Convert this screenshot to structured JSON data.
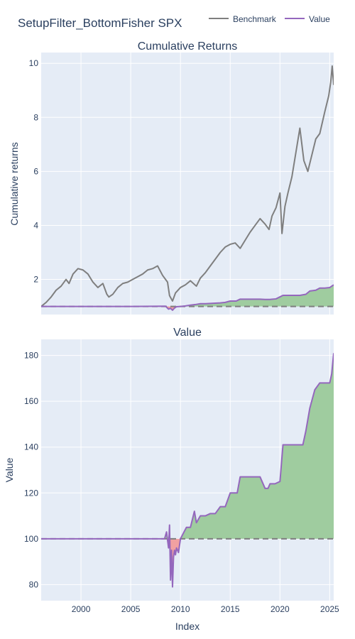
{
  "page": {
    "title": "SetupFilter_BottomFisher SPX",
    "xlabel": "Index"
  },
  "colors": {
    "plot_bg": "#e5ecf6",
    "grid": "#ffffff",
    "benchmark": "#7f7f7f",
    "value": "#9467bd",
    "gain_fill": "#9fcc9f",
    "loss_fill": "#f1a1a1",
    "baseline": "#7f7f7f"
  },
  "legend": {
    "items": [
      {
        "label": "Benchmark",
        "color": "#7f7f7f"
      },
      {
        "label": "Value",
        "color": "#9467bd"
      }
    ]
  },
  "chart_data": [
    {
      "type": "line",
      "title": "Cumulative Returns",
      "ylabel": "Cumulative returns",
      "xlabel": "",
      "xlim": [
        1996.0,
        2025.4
      ],
      "ylim": [
        0.7,
        10.4
      ],
      "x_ticks": [
        2000,
        2005,
        2010,
        2015,
        2020,
        2025
      ],
      "y_ticks": [
        2,
        4,
        6,
        8,
        10
      ],
      "baseline": 1,
      "grid": true,
      "series": [
        {
          "name": "Benchmark",
          "x": [
            1996.0,
            1996.5,
            1997.0,
            1997.5,
            1998.0,
            1998.5,
            1998.8,
            1999.2,
            1999.7,
            2000.2,
            2000.7,
            2001.2,
            2001.7,
            2002.2,
            2002.6,
            2002.8,
            2003.2,
            2003.7,
            2004.2,
            2004.7,
            2005.2,
            2005.7,
            2006.2,
            2006.7,
            2007.2,
            2007.7,
            2008.2,
            2008.7,
            2008.9,
            2009.2,
            2009.5,
            2010.0,
            2010.5,
            2011.0,
            2011.6,
            2012.0,
            2012.5,
            2013.0,
            2013.5,
            2014.0,
            2014.5,
            2015.0,
            2015.5,
            2016.0,
            2016.5,
            2017.0,
            2017.5,
            2018.0,
            2018.5,
            2018.9,
            2019.2,
            2019.6,
            2020.0,
            2020.2,
            2020.5,
            2020.8,
            2021.2,
            2021.6,
            2022.0,
            2022.4,
            2022.8,
            2023.2,
            2023.6,
            2024.0,
            2024.5,
            2024.9,
            2025.1,
            2025.25,
            2025.4
          ],
          "y": [
            1.0,
            1.15,
            1.35,
            1.6,
            1.75,
            2.0,
            1.85,
            2.2,
            2.4,
            2.35,
            2.2,
            1.9,
            1.7,
            1.85,
            1.45,
            1.35,
            1.45,
            1.7,
            1.85,
            1.9,
            2.0,
            2.1,
            2.2,
            2.35,
            2.4,
            2.5,
            2.15,
            1.9,
            1.4,
            1.2,
            1.5,
            1.7,
            1.8,
            1.95,
            1.75,
            2.05,
            2.25,
            2.5,
            2.75,
            3.0,
            3.2,
            3.3,
            3.35,
            3.15,
            3.45,
            3.75,
            4.0,
            4.25,
            4.05,
            3.85,
            4.35,
            4.65,
            5.2,
            3.7,
            4.7,
            5.2,
            5.8,
            6.7,
            7.6,
            6.4,
            6.0,
            6.6,
            7.2,
            7.4,
            8.2,
            8.8,
            9.3,
            9.9,
            9.2
          ]
        },
        {
          "name": "Value",
          "x": [
            1996.0,
            2000.0,
            2005.0,
            2008.5,
            2008.8,
            2009.0,
            2009.2,
            2009.4,
            2009.6,
            2010.0,
            2010.5,
            2011.0,
            2011.5,
            2012.0,
            2012.5,
            2013.0,
            2013.5,
            2014.0,
            2014.5,
            2015.0,
            2015.6,
            2016.0,
            2017.0,
            2018.0,
            2018.5,
            2019.0,
            2019.6,
            2020.3,
            2021.0,
            2022.0,
            2022.6,
            2023.0,
            2023.6,
            2024.0,
            2024.5,
            2025.0,
            2025.4
          ],
          "y": [
            1.0,
            1.0,
            1.0,
            1.01,
            0.9,
            0.93,
            0.86,
            0.94,
            0.99,
            1.0,
            1.02,
            1.05,
            1.07,
            1.1,
            1.1,
            1.11,
            1.12,
            1.13,
            1.15,
            1.2,
            1.2,
            1.27,
            1.27,
            1.27,
            1.26,
            1.26,
            1.28,
            1.41,
            1.41,
            1.41,
            1.45,
            1.57,
            1.6,
            1.68,
            1.68,
            1.7,
            1.8
          ]
        }
      ]
    },
    {
      "type": "area",
      "title": "Value",
      "ylabel": "Value",
      "xlabel": "Index",
      "xlim": [
        1996.0,
        2025.4
      ],
      "ylim": [
        73,
        187
      ],
      "x_ticks": [
        2000,
        2005,
        2010,
        2015,
        2020,
        2025
      ],
      "y_ticks": [
        80,
        100,
        120,
        140,
        160,
        180
      ],
      "baseline": 100,
      "grid": true,
      "series": [
        {
          "name": "Value",
          "x": [
            1996.0,
            2000.0,
            2005.0,
            2008.4,
            2008.6,
            2008.8,
            2008.9,
            2009.0,
            2009.1,
            2009.2,
            2009.3,
            2009.4,
            2009.5,
            2009.6,
            2009.8,
            2010.0,
            2010.6,
            2011.0,
            2011.4,
            2011.6,
            2012.0,
            2012.5,
            2013.0,
            2013.5,
            2014.0,
            2014.5,
            2015.0,
            2015.7,
            2016.0,
            2016.5,
            2017.0,
            2017.5,
            2018.0,
            2018.5,
            2018.8,
            2019.0,
            2019.5,
            2020.0,
            2020.3,
            2021.0,
            2021.5,
            2022.0,
            2022.3,
            2022.6,
            2023.0,
            2023.5,
            2024.0,
            2024.5,
            2025.0,
            2025.2,
            2025.4
          ],
          "y": [
            100,
            100,
            100,
            100,
            103,
            96,
            106,
            82,
            95,
            79,
            92,
            95,
            93,
            96,
            94,
            100,
            105,
            105,
            112,
            107,
            110,
            110,
            111,
            111,
            114,
            114,
            120,
            120,
            127,
            127,
            127,
            127,
            127,
            122,
            122,
            124,
            124,
            125,
            141,
            141,
            141,
            141,
            141,
            147,
            157,
            165,
            168,
            168,
            168,
            172,
            181
          ]
        }
      ]
    }
  ]
}
